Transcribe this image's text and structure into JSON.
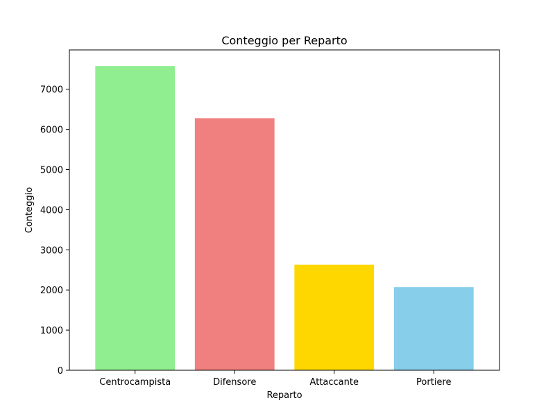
{
  "chart_data": {
    "type": "bar",
    "title": "Conteggio per Reparto",
    "xlabel": "Reparto",
    "ylabel": "Conteggio",
    "categories": [
      "Centrocampista",
      "Difensore",
      "Attaccante",
      "Portiere"
    ],
    "values": [
      7580,
      6280,
      2630,
      2070
    ],
    "colors": [
      "#90ee90",
      "#f08080",
      "#ffd700",
      "#87ceeb"
    ],
    "ylim": [
      0,
      7980
    ],
    "yticks": [
      0,
      1000,
      2000,
      3000,
      4000,
      5000,
      6000,
      7000
    ],
    "grid": false,
    "legend": "none"
  }
}
